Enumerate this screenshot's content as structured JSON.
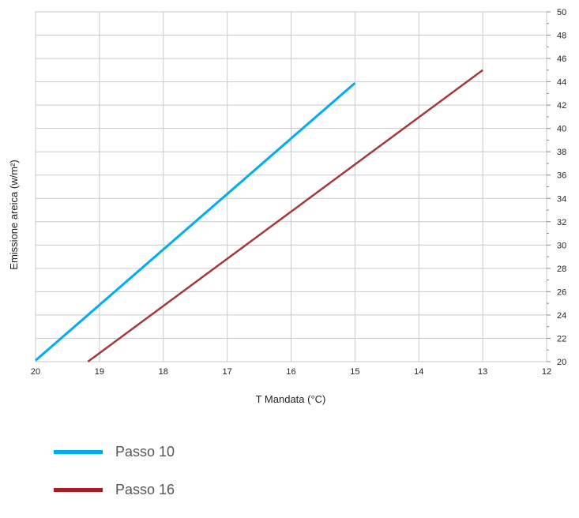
{
  "chart_data": {
    "type": "line",
    "title": "",
    "xlabel": "T Mandata (°C)",
    "ylabel": "Emissione areica (w/m²)",
    "xlim": [
      20,
      12
    ],
    "ylim": [
      20,
      50
    ],
    "x_reversed": true,
    "x_ticks": [
      20,
      19,
      18,
      17,
      16,
      15,
      14,
      13,
      12
    ],
    "y_ticks": [
      20,
      22,
      24,
      26,
      28,
      30,
      32,
      34,
      36,
      38,
      40,
      42,
      44,
      46,
      48,
      50
    ],
    "grid": true,
    "legend_position": "bottom-left",
    "series": [
      {
        "name": "Passo 10",
        "color": "#00ADEF",
        "points": [
          [
            20.0,
            20.1
          ],
          [
            15.0,
            43.9
          ]
        ]
      },
      {
        "name": "Passo 16",
        "color": "#A33A3A",
        "points": [
          [
            19.18,
            20.0
          ],
          [
            13.0,
            45.0
          ]
        ]
      }
    ],
    "legend": [
      {
        "label": "Passo 10",
        "color": "#00ADEF"
      },
      {
        "label": "Passo 16",
        "color": "#A61E22"
      }
    ]
  }
}
